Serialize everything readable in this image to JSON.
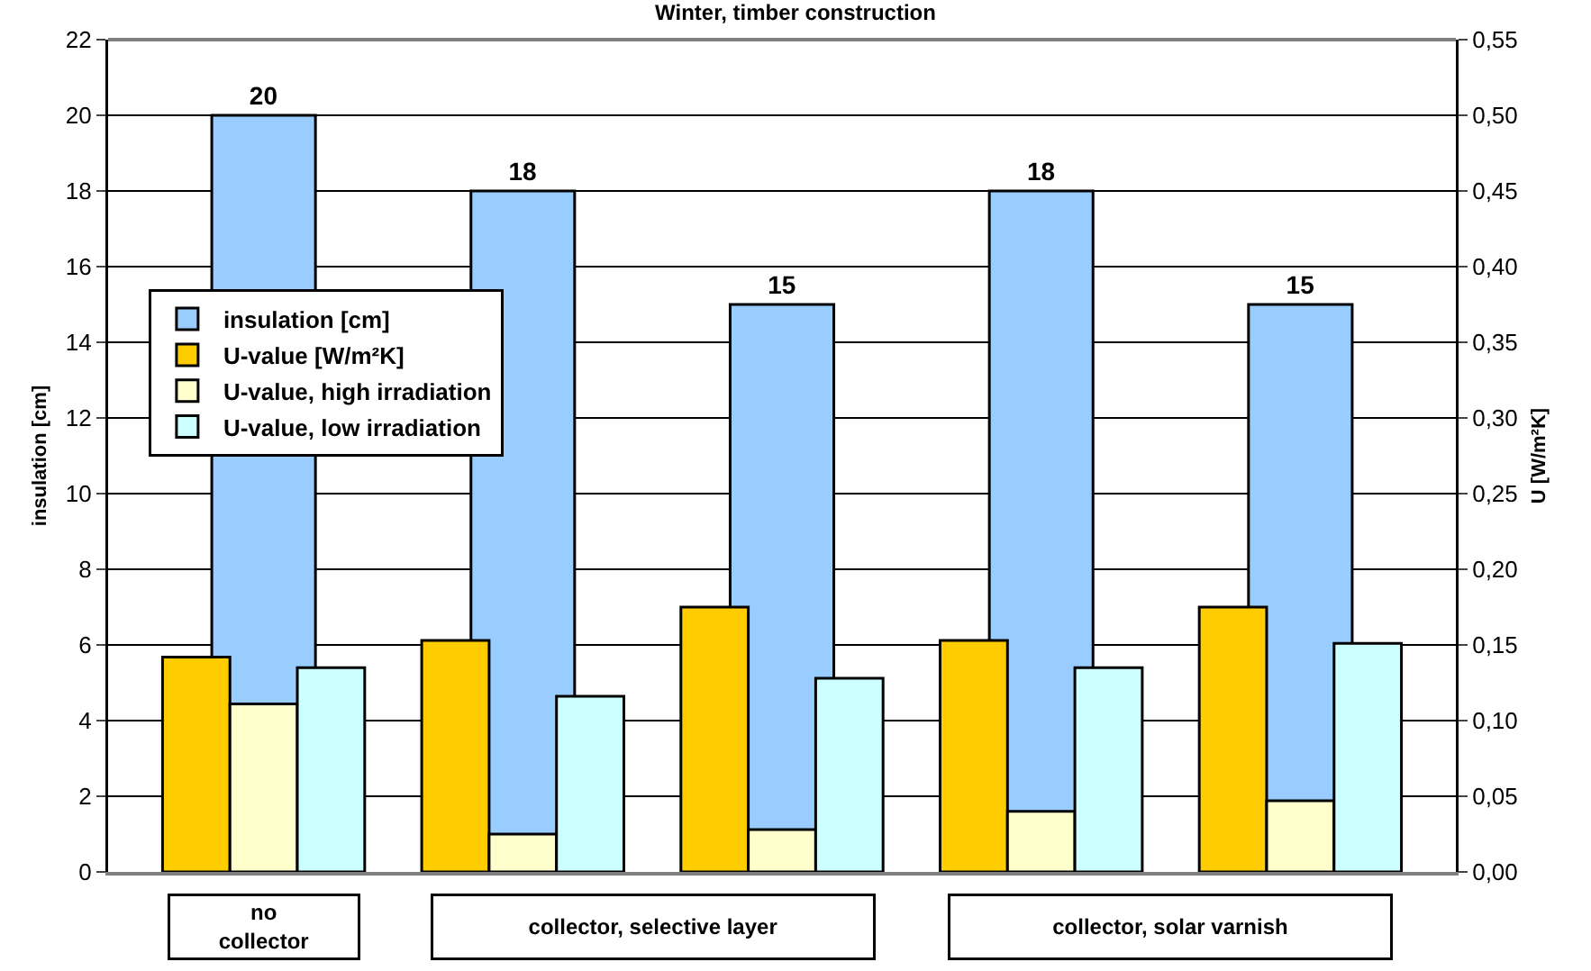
{
  "chart_data": {
    "type": "bar",
    "title": "Winter, timber construction",
    "ylabel": "insulation [cm]",
    "y2label": "U [W/m²K]",
    "categories": [
      null,
      null,
      null,
      null,
      null
    ],
    "series": [
      {
        "name": "insulation [cm]",
        "color": "#99ccff",
        "values": [
          20,
          18,
          15,
          18,
          15
        ],
        "value_labels": [
          "20",
          "18",
          "15",
          "18",
          "15"
        ]
      },
      {
        "name": "U-value [W/m²K]",
        "color": "#ffcc00",
        "axis": "y2",
        "values": [
          0.142,
          0.153,
          0.175,
          0.153,
          0.175
        ]
      },
      {
        "name": "U-value, high irradiation",
        "color": "#ffffcc",
        "axis": "y2",
        "values": [
          0.111,
          0.025,
          0.028,
          0.04,
          0.047
        ]
      },
      {
        "name": "U-value, low irradiation",
        "color": "#ccffff",
        "axis": "y2",
        "values": [
          0.135,
          0.116,
          0.128,
          0.135,
          0.151
        ]
      }
    ],
    "ylim": [
      0,
      22
    ],
    "yticks": [
      0,
      2,
      4,
      6,
      8,
      10,
      12,
      14,
      16,
      18,
      20,
      22
    ],
    "y2lim": [
      0,
      0.55
    ],
    "y2ticks": [
      {
        "value": 0,
        "label": "0,00"
      },
      {
        "value": 0.05,
        "label": "0,05"
      },
      {
        "value": 0.1,
        "label": "0,10"
      },
      {
        "value": 0.15,
        "label": "0,15"
      },
      {
        "value": 0.2,
        "label": "0,20"
      },
      {
        "value": 0.25,
        "label": "0,25"
      },
      {
        "value": 0.3,
        "label": "0,30"
      },
      {
        "value": 0.35,
        "label": "0,35"
      },
      {
        "value": 0.4,
        "label": "0,40"
      },
      {
        "value": 0.45,
        "label": "0,45"
      },
      {
        "value": 0.5,
        "label": "0,50"
      },
      {
        "value": 0.55,
        "label": "0,55"
      }
    ],
    "annotations": [
      "no collector",
      "collector, selective layer",
      "collector, solar varnish"
    ],
    "grid": "y",
    "legend": "left"
  }
}
